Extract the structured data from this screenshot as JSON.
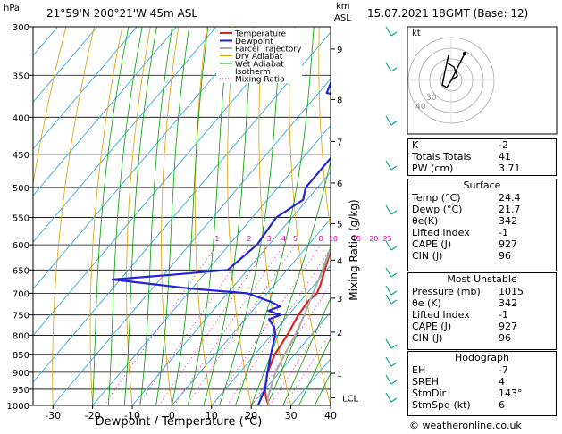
{
  "header": {
    "hpa_label": "hPa",
    "location": "21°59'N  200°21'W  45m  ASL",
    "km_label": "km",
    "asl_label": "ASL",
    "datetime": "15.07.2021  18GMT  (Base: 12)",
    "footer": "© weatheronline.co.uk"
  },
  "chart_data": {
    "type": "line",
    "title": "",
    "xlabel": "Dewpoint / Temperature (°C)",
    "ylabel": "",
    "mixing_ratio_label": "Mixing Ratio (g/kg)",
    "pressure_ticks": [
      300,
      350,
      400,
      450,
      500,
      550,
      600,
      650,
      700,
      750,
      800,
      850,
      900,
      950,
      1000
    ],
    "temperature_ticks": [
      -30,
      -20,
      -10,
      0,
      10,
      20,
      30,
      40
    ],
    "xlim": [
      -35,
      40
    ],
    "ylim": [
      1000,
      300
    ],
    "km_ticks": [
      {
        "label": "9",
        "p": 322
      },
      {
        "label": "8",
        "p": 378
      },
      {
        "label": "7",
        "p": 432
      },
      {
        "label": "6",
        "p": 493
      },
      {
        "label": "5",
        "p": 561
      },
      {
        "label": "4",
        "p": 630
      },
      {
        "label": "3",
        "p": 711
      },
      {
        "label": "2",
        "p": 792
      },
      {
        "label": "1",
        "p": 903
      },
      {
        "label": "LCL",
        "p": 976
      }
    ],
    "mixing_ratio_values": [
      "1",
      "2",
      "3",
      "4",
      "5",
      "8",
      "10",
      "15",
      "20",
      "25"
    ],
    "legend": [
      "Temperature",
      "Dewpoint",
      "Parcel Trajectory",
      "Dry Adiabat",
      "Wet Adiabat",
      "Isotherm",
      "Mixing Ratio"
    ],
    "series": [
      {
        "name": "Temperature",
        "color": "#dd2222",
        "points": [
          [
            1000,
            24.4
          ],
          [
            975,
            22
          ],
          [
            950,
            20
          ],
          [
            925,
            18.5
          ],
          [
            900,
            17
          ],
          [
            850,
            15
          ],
          [
            800,
            14
          ],
          [
            750,
            12.5
          ],
          [
            720,
            12
          ],
          [
            700,
            12.5
          ],
          [
            680,
            11.5
          ],
          [
            650,
            9.5
          ],
          [
            600,
            6
          ],
          [
            550,
            2
          ],
          [
            500,
            -3
          ],
          [
            450,
            -9
          ],
          [
            400,
            -16
          ],
          [
            375,
            -20.5
          ],
          [
            350,
            -24
          ],
          [
            300,
            -33
          ]
        ]
      },
      {
        "name": "Dewpoint",
        "color": "#2222dd",
        "points": [
          [
            1000,
            21.7
          ],
          [
            950,
            20
          ],
          [
            900,
            17
          ],
          [
            850,
            14
          ],
          [
            800,
            11
          ],
          [
            780,
            9
          ],
          [
            760,
            6
          ],
          [
            750,
            8
          ],
          [
            740,
            4
          ],
          [
            730,
            6
          ],
          [
            720,
            3
          ],
          [
            700,
            -5
          ],
          [
            690,
            -20
          ],
          [
            670,
            -42
          ],
          [
            660,
            -28
          ],
          [
            650,
            -15
          ],
          [
            600,
            -13
          ],
          [
            550,
            -14
          ],
          [
            520,
            -11
          ],
          [
            500,
            -13
          ],
          [
            450,
            -13
          ],
          [
            400,
            -12
          ],
          [
            380,
            -18
          ],
          [
            370,
            -28
          ],
          [
            350,
            -30
          ],
          [
            330,
            -31
          ],
          [
            300,
            -27
          ]
        ]
      },
      {
        "name": "Parcel Trajectory",
        "color": "#aaaaaa",
        "points": [
          [
            1000,
            24.4
          ],
          [
            976,
            22.5
          ],
          [
            900,
            19
          ],
          [
            850,
            17.5
          ],
          [
            800,
            16
          ],
          [
            750,
            14
          ],
          [
            700,
            11.5
          ],
          [
            650,
            9
          ],
          [
            600,
            6
          ],
          [
            550,
            3
          ],
          [
            500,
            -0.5
          ],
          [
            450,
            -5
          ],
          [
            400,
            -10
          ],
          [
            350,
            -16
          ],
          [
            300,
            -23
          ]
        ]
      }
    ]
  },
  "indices": [
    {
      "label": "K",
      "value": "-2"
    },
    {
      "label": "Totals Totals",
      "value": "41"
    },
    {
      "label": "PW (cm)",
      "value": "3.71"
    }
  ],
  "surface": {
    "title": "Surface",
    "rows": [
      {
        "label": "Temp (°C)",
        "value": "24.4"
      },
      {
        "label": "Dewp (°C)",
        "value": "21.7"
      },
      {
        "label": "θe(K)",
        "value": "342"
      },
      {
        "label": "Lifted Index",
        "value": "-1"
      },
      {
        "label": "CAPE (J)",
        "value": "927"
      },
      {
        "label": "CIN (J)",
        "value": "96"
      }
    ]
  },
  "most_unstable": {
    "title": "Most Unstable",
    "rows": [
      {
        "label": "Pressure (mb)",
        "value": "1015"
      },
      {
        "label": "θe (K)",
        "value": "342"
      },
      {
        "label": "Lifted Index",
        "value": "-1"
      },
      {
        "label": "CAPE (J)",
        "value": "927"
      },
      {
        "label": "CIN (J)",
        "value": "96"
      }
    ]
  },
  "hodograph": {
    "title": "Hodograph",
    "kt_label": "kt",
    "ring_labels": [
      "40",
      "30"
    ],
    "rows": [
      {
        "label": "EH",
        "value": "-7"
      },
      {
        "label": "SREH",
        "value": "4"
      },
      {
        "label": "StmDir",
        "value": "143°"
      },
      {
        "label": "StmSpd (kt)",
        "value": "6"
      }
    ]
  },
  "colors": {
    "temperature": "#dd2222",
    "dewpoint": "#2222dd",
    "parcel": "#aaaaaa",
    "dry_adiabat": "#e0a000",
    "wet_adiabat": "#00a000",
    "isotherm": "#33aadd",
    "mixing_ratio": "#dd0099",
    "wind_barb": "#00aa99"
  }
}
